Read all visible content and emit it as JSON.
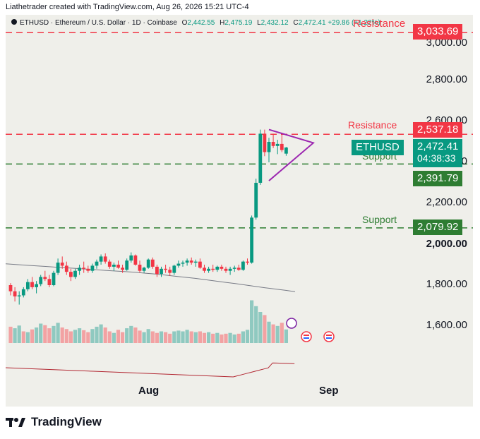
{
  "caption": "Liathetrader created with TradingView.com, Aug 26, 2026 15:21 UTC-4",
  "legend": {
    "symbol": "ETHUSD · Ethereum / U.S. Dollar · 1D · Coinbase",
    "o_label": "O",
    "o_value": "2,442.55",
    "h_label": "H",
    "h_value": "2,475.19",
    "l_label": "L",
    "l_value": "2,432.12",
    "c_label": "C",
    "c_value": "2,472.41",
    "change": "+29.86 (+1.22%)"
  },
  "price_axis": {
    "ticks": [
      "3,000.00",
      "2,800.00",
      "2,600.00",
      "2,400.00",
      "2,200.00",
      "2,000.00",
      "1,800.00",
      "1,600.00"
    ],
    "bold_tick": "2,000.00"
  },
  "tags": {
    "resistance_top_text": "Resistance",
    "resistance_top_value": "3,033.69",
    "resistance_mid_text": "Resistance",
    "resistance_mid_value": "2,537.18",
    "symbol_tag": "ETHUSD",
    "last_price": "2,472.41",
    "countdown": "04:38:33",
    "support_mid_text": "Support",
    "support_mid_value": "2,391.79",
    "support_low_text": "Support",
    "support_low_value": "2,079.92"
  },
  "x_axis": {
    "aug": "Aug",
    "sep": "Sep"
  },
  "footer": {
    "brand": "TradingView"
  },
  "colors": {
    "up": "#089981",
    "down": "#f23645",
    "resistance": "#f23645",
    "support": "#2e7d32",
    "triangle": "#9c27b0",
    "ma": "#787b86",
    "rsi": "#b22833",
    "vol_up": "#8fc9c0",
    "vol_down": "#f2a2a3"
  },
  "chart_data": {
    "type": "candlestick",
    "ylim": [
      1520,
      3080
    ],
    "levels": {
      "resistance": [
        3033.69,
        2537.18
      ],
      "support": [
        2391.79,
        2079.92
      ]
    },
    "last_close": 2472.41,
    "candles": [
      [
        1800,
        1810,
        1750,
        1770
      ],
      [
        1770,
        1790,
        1720,
        1745
      ],
      [
        1745,
        1770,
        1705,
        1750
      ],
      [
        1750,
        1790,
        1740,
        1780
      ],
      [
        1780,
        1830,
        1770,
        1815
      ],
      [
        1815,
        1840,
        1780,
        1790
      ],
      [
        1790,
        1820,
        1760,
        1805
      ],
      [
        1805,
        1850,
        1795,
        1840
      ],
      [
        1840,
        1870,
        1820,
        1830
      ],
      [
        1830,
        1850,
        1790,
        1800
      ],
      [
        1800,
        1870,
        1795,
        1860
      ],
      [
        1860,
        1930,
        1850,
        1910
      ],
      [
        1910,
        1940,
        1880,
        1895
      ],
      [
        1895,
        1915,
        1850,
        1865
      ],
      [
        1865,
        1880,
        1820,
        1840
      ],
      [
        1840,
        1880,
        1830,
        1870
      ],
      [
        1870,
        1900,
        1850,
        1885
      ],
      [
        1885,
        1915,
        1860,
        1880
      ],
      [
        1880,
        1895,
        1860,
        1870
      ],
      [
        1870,
        1905,
        1860,
        1895
      ],
      [
        1895,
        1925,
        1880,
        1915
      ],
      [
        1915,
        1950,
        1900,
        1940
      ],
      [
        1940,
        1955,
        1905,
        1915
      ],
      [
        1915,
        1925,
        1880,
        1890
      ],
      [
        1890,
        1910,
        1870,
        1900
      ],
      [
        1900,
        1920,
        1880,
        1885
      ],
      [
        1885,
        1900,
        1860,
        1875
      ],
      [
        1875,
        1930,
        1870,
        1920
      ],
      [
        1920,
        1960,
        1910,
        1945
      ],
      [
        1945,
        1950,
        1895,
        1900
      ],
      [
        1900,
        1920,
        1860,
        1870
      ],
      [
        1870,
        1890,
        1860,
        1885
      ],
      [
        1885,
        1930,
        1880,
        1925
      ],
      [
        1925,
        1935,
        1880,
        1890
      ],
      [
        1890,
        1900,
        1840,
        1855
      ],
      [
        1855,
        1890,
        1840,
        1880
      ],
      [
        1880,
        1900,
        1860,
        1875
      ],
      [
        1875,
        1890,
        1845,
        1860
      ],
      [
        1860,
        1900,
        1850,
        1895
      ],
      [
        1895,
        1920,
        1885,
        1905
      ],
      [
        1905,
        1920,
        1890,
        1910
      ],
      [
        1910,
        1930,
        1895,
        1920
      ],
      [
        1920,
        1935,
        1900,
        1910
      ],
      [
        1910,
        1925,
        1890,
        1915
      ],
      [
        1915,
        1930,
        1880,
        1885
      ],
      [
        1885,
        1900,
        1860,
        1870
      ],
      [
        1870,
        1890,
        1860,
        1880
      ],
      [
        1880,
        1900,
        1865,
        1875
      ],
      [
        1875,
        1895,
        1865,
        1890
      ],
      [
        1890,
        1900,
        1870,
        1880
      ],
      [
        1880,
        1890,
        1860,
        1870
      ],
      [
        1870,
        1890,
        1850,
        1880
      ],
      [
        1880,
        1895,
        1865,
        1885
      ],
      [
        1885,
        1900,
        1870,
        1875
      ],
      [
        1875,
        1920,
        1870,
        1915
      ],
      [
        1915,
        1930,
        1900,
        1910
      ],
      [
        1910,
        2140,
        1905,
        2130
      ],
      [
        2130,
        2320,
        2120,
        2300
      ],
      [
        2300,
        2560,
        2290,
        2540
      ],
      [
        2540,
        2560,
        2430,
        2450
      ],
      [
        2450,
        2520,
        2400,
        2500
      ],
      [
        2500,
        2540,
        2470,
        2480
      ],
      [
        2480,
        2510,
        2440,
        2490
      ],
      [
        2490,
        2545,
        2450,
        2460
      ],
      [
        2442.55,
        2475.19,
        2432.12,
        2472.41
      ]
    ],
    "volume": [
      [
        42,
        0
      ],
      [
        38,
        1
      ],
      [
        45,
        1
      ],
      [
        30,
        0
      ],
      [
        28,
        1
      ],
      [
        35,
        0
      ],
      [
        40,
        1
      ],
      [
        50,
        1
      ],
      [
        46,
        0
      ],
      [
        38,
        0
      ],
      [
        44,
        1
      ],
      [
        52,
        1
      ],
      [
        40,
        0
      ],
      [
        36,
        0
      ],
      [
        30,
        0
      ],
      [
        34,
        1
      ],
      [
        38,
        1
      ],
      [
        33,
        0
      ],
      [
        28,
        0
      ],
      [
        36,
        1
      ],
      [
        42,
        1
      ],
      [
        48,
        1
      ],
      [
        40,
        0
      ],
      [
        30,
        0
      ],
      [
        26,
        1
      ],
      [
        34,
        0
      ],
      [
        28,
        0
      ],
      [
        38,
        1
      ],
      [
        44,
        1
      ],
      [
        40,
        0
      ],
      [
        32,
        0
      ],
      [
        28,
        1
      ],
      [
        36,
        1
      ],
      [
        30,
        0
      ],
      [
        26,
        0
      ],
      [
        30,
        1
      ],
      [
        28,
        0
      ],
      [
        24,
        0
      ],
      [
        30,
        1
      ],
      [
        32,
        1
      ],
      [
        30,
        1
      ],
      [
        34,
        1
      ],
      [
        30,
        0
      ],
      [
        28,
        1
      ],
      [
        30,
        0
      ],
      [
        26,
        0
      ],
      [
        28,
        1
      ],
      [
        24,
        0
      ],
      [
        26,
        1
      ],
      [
        22,
        0
      ],
      [
        24,
        0
      ],
      [
        26,
        1
      ],
      [
        22,
        1
      ],
      [
        24,
        0
      ],
      [
        30,
        1
      ],
      [
        34,
        1
      ],
      [
        110,
        1
      ],
      [
        95,
        1
      ],
      [
        80,
        1
      ],
      [
        72,
        0
      ],
      [
        55,
        1
      ],
      [
        48,
        0
      ],
      [
        44,
        1
      ],
      [
        52,
        0
      ],
      [
        35,
        1
      ]
    ],
    "ma": [
      1900,
      1897,
      1894,
      1891,
      1888,
      1885,
      1882,
      1879,
      1876,
      1873,
      1870,
      1867,
      1864,
      1861,
      1857,
      1853,
      1848,
      1843,
      1838,
      1833,
      1827,
      1821,
      1815,
      1809,
      1803,
      1796,
      1790,
      1784,
      1778,
      1772
    ],
    "triangle": {
      "start_index": 60,
      "end_index": 69,
      "upper_start": 2560,
      "lower_start": 2310,
      "apex": 2495
    }
  }
}
